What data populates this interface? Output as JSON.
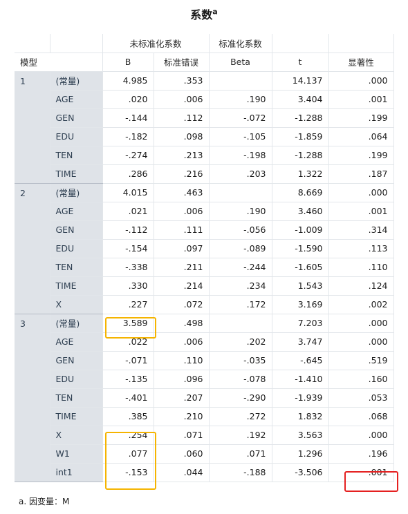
{
  "title": "系数",
  "title_sup": "a",
  "header": {
    "unstd_group": "未标准化系数",
    "std_group": "标准化系数",
    "model": "模型",
    "b": "B",
    "se": "标准错误",
    "beta": "Beta",
    "t": "t",
    "sig": "显著性"
  },
  "models": [
    {
      "id": "1",
      "rows": [
        {
          "var": "(常量)",
          "b": "4.985",
          "se": ".353",
          "beta": "",
          "t": "14.137",
          "sig": ".000"
        },
        {
          "var": "AGE",
          "b": ".020",
          "se": ".006",
          "beta": ".190",
          "t": "3.404",
          "sig": ".001"
        },
        {
          "var": "GEN",
          "b": "-.144",
          "se": ".112",
          "beta": "-.072",
          "t": "-1.288",
          "sig": ".199"
        },
        {
          "var": "EDU",
          "b": "-.182",
          "se": ".098",
          "beta": "-.105",
          "t": "-1.859",
          "sig": ".064"
        },
        {
          "var": "TEN",
          "b": "-.274",
          "se": ".213",
          "beta": "-.198",
          "t": "-1.288",
          "sig": ".199"
        },
        {
          "var": "TIME",
          "b": ".286",
          "se": ".216",
          "beta": ".203",
          "t": "1.322",
          "sig": ".187"
        }
      ]
    },
    {
      "id": "2",
      "rows": [
        {
          "var": "(常量)",
          "b": "4.015",
          "se": ".463",
          "beta": "",
          "t": "8.669",
          "sig": ".000"
        },
        {
          "var": "AGE",
          "b": ".021",
          "se": ".006",
          "beta": ".190",
          "t": "3.460",
          "sig": ".001"
        },
        {
          "var": "GEN",
          "b": "-.112",
          "se": ".111",
          "beta": "-.056",
          "t": "-1.009",
          "sig": ".314"
        },
        {
          "var": "EDU",
          "b": "-.154",
          "se": ".097",
          "beta": "-.089",
          "t": "-1.590",
          "sig": ".113"
        },
        {
          "var": "TEN",
          "b": "-.338",
          "se": ".211",
          "beta": "-.244",
          "t": "-1.605",
          "sig": ".110"
        },
        {
          "var": "TIME",
          "b": ".330",
          "se": ".214",
          "beta": ".234",
          "t": "1.543",
          "sig": ".124"
        },
        {
          "var": "X",
          "b": ".227",
          "se": ".072",
          "beta": ".172",
          "t": "3.169",
          "sig": ".002"
        }
      ]
    },
    {
      "id": "3",
      "rows": [
        {
          "var": "(常量)",
          "b": "3.589",
          "se": ".498",
          "beta": "",
          "t": "7.203",
          "sig": ".000"
        },
        {
          "var": "AGE",
          "b": ".022",
          "se": ".006",
          "beta": ".202",
          "t": "3.747",
          "sig": ".000"
        },
        {
          "var": "GEN",
          "b": "-.071",
          "se": ".110",
          "beta": "-.035",
          "t": "-.645",
          "sig": ".519"
        },
        {
          "var": "EDU",
          "b": "-.135",
          "se": ".096",
          "beta": "-.078",
          "t": "-1.410",
          "sig": ".160"
        },
        {
          "var": "TEN",
          "b": "-.401",
          "se": ".207",
          "beta": "-.290",
          "t": "-1.939",
          "sig": ".053"
        },
        {
          "var": "TIME",
          "b": ".385",
          "se": ".210",
          "beta": ".272",
          "t": "1.832",
          "sig": ".068"
        },
        {
          "var": "X",
          "b": ".254",
          "se": ".071",
          "beta": ".192",
          "t": "3.563",
          "sig": ".000"
        },
        {
          "var": "W1",
          "b": ".077",
          "se": ".060",
          "beta": ".071",
          "t": "1.296",
          "sig": ".196"
        },
        {
          "var": "int1",
          "b": "-.153",
          "se": ".044",
          "beta": "-.188",
          "t": "-3.506",
          "sig": ".001"
        }
      ]
    }
  ],
  "footnote": "a. 因变量：M",
  "highlight_colors": {
    "orange": "#f5b400",
    "red": "#e52020"
  }
}
